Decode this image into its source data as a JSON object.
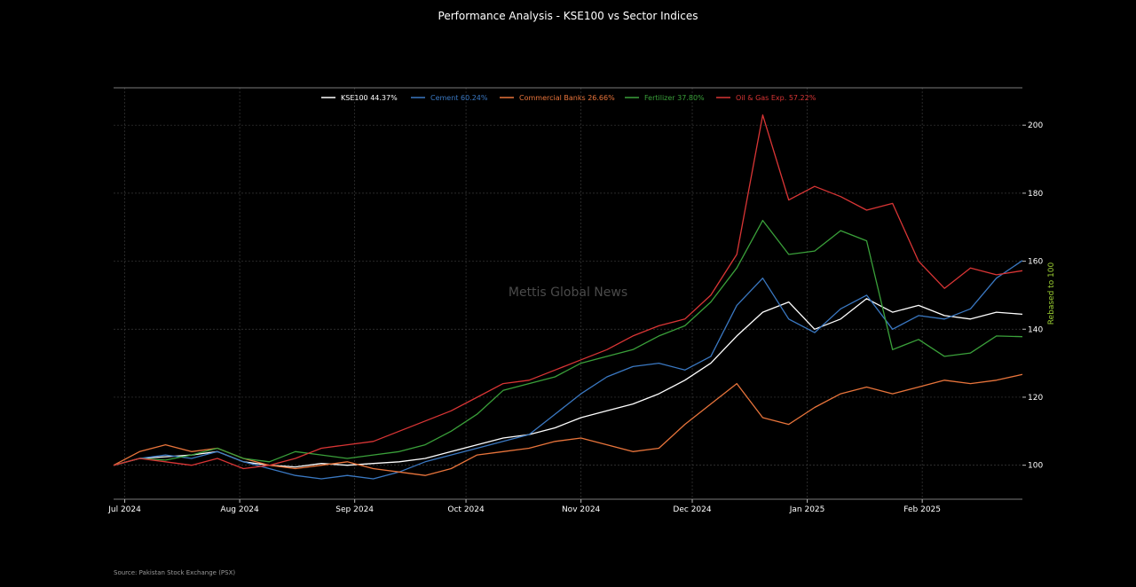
{
  "chart_data": {
    "type": "line",
    "title": "Performance Analysis - KSE100 vs Sector Indices",
    "ylabel": "Rebased to 100",
    "xlabel": "",
    "watermark": "Mettis Global News",
    "source": "Source: Pakistan Stock Exchange (PSX)",
    "x_range": [
      "2024-06-28",
      "2025-02-28"
    ],
    "ylim": [
      90,
      211
    ],
    "y_ticks": [
      100,
      120,
      140,
      160,
      180,
      200
    ],
    "y_axis_position": "right",
    "x_ticks": [
      {
        "date": "2024-07-01",
        "label": "Jul 2024"
      },
      {
        "date": "2024-08-01",
        "label": "Aug 2024"
      },
      {
        "date": "2024-09-01",
        "label": "Sep 2024"
      },
      {
        "date": "2024-10-01",
        "label": "Oct 2024"
      },
      {
        "date": "2024-11-01",
        "label": "Nov 2024"
      },
      {
        "date": "2024-12-01",
        "label": "Dec 2024"
      },
      {
        "date": "2025-01-01",
        "label": "Jan 2025"
      },
      {
        "date": "2025-02-01",
        "label": "Feb 2025"
      }
    ],
    "grid": true,
    "legend_placement": "top-center",
    "colors": {
      "background": "#000000",
      "ylabel": "#9acd32"
    },
    "series": [
      {
        "name": "KSE100 44.37%",
        "color": "#ffffff",
        "points": [
          [
            "2024-06-28",
            100
          ],
          [
            "2024-07-05",
            102
          ],
          [
            "2024-07-12",
            102.5
          ],
          [
            "2024-07-19",
            103
          ],
          [
            "2024-07-26",
            104
          ],
          [
            "2024-08-02",
            101
          ],
          [
            "2024-08-09",
            100
          ],
          [
            "2024-08-16",
            99.5
          ],
          [
            "2024-08-23",
            100.5
          ],
          [
            "2024-08-30",
            100
          ],
          [
            "2024-09-06",
            100.5
          ],
          [
            "2024-09-13",
            101
          ],
          [
            "2024-09-20",
            102
          ],
          [
            "2024-09-27",
            104
          ],
          [
            "2024-10-04",
            106
          ],
          [
            "2024-10-11",
            108
          ],
          [
            "2024-10-18",
            109
          ],
          [
            "2024-10-25",
            111
          ],
          [
            "2024-11-01",
            114
          ],
          [
            "2024-11-08",
            116
          ],
          [
            "2024-11-15",
            118
          ],
          [
            "2024-11-22",
            121
          ],
          [
            "2024-11-29",
            125
          ],
          [
            "2024-12-06",
            130
          ],
          [
            "2024-12-13",
            138
          ],
          [
            "2024-12-20",
            145
          ],
          [
            "2024-12-27",
            148
          ],
          [
            "2025-01-03",
            140
          ],
          [
            "2025-01-10",
            143
          ],
          [
            "2025-01-17",
            149
          ],
          [
            "2025-01-24",
            145
          ],
          [
            "2025-01-31",
            147
          ],
          [
            "2025-02-07",
            144
          ],
          [
            "2025-02-14",
            143
          ],
          [
            "2025-02-21",
            145
          ],
          [
            "2025-02-28",
            144.4
          ]
        ]
      },
      {
        "name": "Cement 60.24%",
        "color": "#3a78c2",
        "points": [
          [
            "2024-06-28",
            100
          ],
          [
            "2024-07-05",
            102
          ],
          [
            "2024-07-12",
            103
          ],
          [
            "2024-07-19",
            102
          ],
          [
            "2024-07-26",
            104
          ],
          [
            "2024-08-02",
            101
          ],
          [
            "2024-08-09",
            99
          ],
          [
            "2024-08-16",
            97
          ],
          [
            "2024-08-23",
            96
          ],
          [
            "2024-08-30",
            97
          ],
          [
            "2024-09-06",
            96
          ],
          [
            "2024-09-13",
            98
          ],
          [
            "2024-09-20",
            101
          ],
          [
            "2024-09-27",
            103
          ],
          [
            "2024-10-04",
            105
          ],
          [
            "2024-10-11",
            107
          ],
          [
            "2024-10-18",
            109
          ],
          [
            "2024-10-25",
            115
          ],
          [
            "2024-11-01",
            121
          ],
          [
            "2024-11-08",
            126
          ],
          [
            "2024-11-15",
            129
          ],
          [
            "2024-11-22",
            130
          ],
          [
            "2024-11-29",
            128
          ],
          [
            "2024-12-06",
            132
          ],
          [
            "2024-12-13",
            147
          ],
          [
            "2024-12-20",
            155
          ],
          [
            "2024-12-27",
            143
          ],
          [
            "2025-01-03",
            139
          ],
          [
            "2025-01-10",
            146
          ],
          [
            "2025-01-17",
            150
          ],
          [
            "2025-01-24",
            140
          ],
          [
            "2025-01-31",
            144
          ],
          [
            "2025-02-07",
            143
          ],
          [
            "2025-02-14",
            146
          ],
          [
            "2025-02-21",
            155
          ],
          [
            "2025-02-28",
            160.2
          ]
        ]
      },
      {
        "name": "Commercial Banks 26.66%",
        "color": "#e8743b",
        "points": [
          [
            "2024-06-28",
            100
          ],
          [
            "2024-07-05",
            104
          ],
          [
            "2024-07-12",
            106
          ],
          [
            "2024-07-19",
            104
          ],
          [
            "2024-07-26",
            105
          ],
          [
            "2024-08-02",
            102
          ],
          [
            "2024-08-09",
            100
          ],
          [
            "2024-08-16",
            99
          ],
          [
            "2024-08-23",
            100
          ],
          [
            "2024-08-30",
            101
          ],
          [
            "2024-09-06",
            99
          ],
          [
            "2024-09-13",
            98
          ],
          [
            "2024-09-20",
            97
          ],
          [
            "2024-09-27",
            99
          ],
          [
            "2024-10-04",
            103
          ],
          [
            "2024-10-11",
            104
          ],
          [
            "2024-10-18",
            105
          ],
          [
            "2024-10-25",
            107
          ],
          [
            "2024-11-01",
            108
          ],
          [
            "2024-11-08",
            106
          ],
          [
            "2024-11-15",
            104
          ],
          [
            "2024-11-22",
            105
          ],
          [
            "2024-11-29",
            112
          ],
          [
            "2024-12-06",
            118
          ],
          [
            "2024-12-13",
            124
          ],
          [
            "2024-12-20",
            114
          ],
          [
            "2024-12-27",
            112
          ],
          [
            "2025-01-03",
            117
          ],
          [
            "2025-01-10",
            121
          ],
          [
            "2025-01-17",
            123
          ],
          [
            "2025-01-24",
            121
          ],
          [
            "2025-01-31",
            123
          ],
          [
            "2025-02-07",
            125
          ],
          [
            "2025-02-14",
            124
          ],
          [
            "2025-02-21",
            125
          ],
          [
            "2025-02-28",
            126.7
          ]
        ]
      },
      {
        "name": "Fertilizer 37.80%",
        "color": "#3aa03a",
        "points": [
          [
            "2024-06-28",
            100
          ],
          [
            "2024-07-05",
            102
          ],
          [
            "2024-07-12",
            101.5
          ],
          [
            "2024-07-19",
            103
          ],
          [
            "2024-07-26",
            105
          ],
          [
            "2024-08-02",
            102
          ],
          [
            "2024-08-09",
            101
          ],
          [
            "2024-08-16",
            104
          ],
          [
            "2024-08-23",
            103
          ],
          [
            "2024-08-30",
            102
          ],
          [
            "2024-09-06",
            103
          ],
          [
            "2024-09-13",
            104
          ],
          [
            "2024-09-20",
            106
          ],
          [
            "2024-09-27",
            110
          ],
          [
            "2024-10-04",
            115
          ],
          [
            "2024-10-11",
            122
          ],
          [
            "2024-10-18",
            124
          ],
          [
            "2024-10-25",
            126
          ],
          [
            "2024-11-01",
            130
          ],
          [
            "2024-11-08",
            132
          ],
          [
            "2024-11-15",
            134
          ],
          [
            "2024-11-22",
            138
          ],
          [
            "2024-11-29",
            141
          ],
          [
            "2024-12-06",
            148
          ],
          [
            "2024-12-13",
            158
          ],
          [
            "2024-12-20",
            172
          ],
          [
            "2024-12-27",
            162
          ],
          [
            "2025-01-03",
            163
          ],
          [
            "2025-01-10",
            169
          ],
          [
            "2025-01-17",
            166
          ],
          [
            "2025-01-24",
            134
          ],
          [
            "2025-01-31",
            137
          ],
          [
            "2025-02-07",
            132
          ],
          [
            "2025-02-14",
            133
          ],
          [
            "2025-02-21",
            138
          ],
          [
            "2025-02-28",
            137.8
          ]
        ]
      },
      {
        "name": "Oil & Gas Exp. 57.22%",
        "color": "#d93535",
        "points": [
          [
            "2024-06-28",
            100
          ],
          [
            "2024-07-05",
            102
          ],
          [
            "2024-07-12",
            101
          ],
          [
            "2024-07-19",
            100
          ],
          [
            "2024-07-26",
            102
          ],
          [
            "2024-08-02",
            99
          ],
          [
            "2024-08-09",
            100
          ],
          [
            "2024-08-16",
            102
          ],
          [
            "2024-08-23",
            105
          ],
          [
            "2024-08-30",
            106
          ],
          [
            "2024-09-06",
            107
          ],
          [
            "2024-09-13",
            110
          ],
          [
            "2024-09-20",
            113
          ],
          [
            "2024-09-27",
            116
          ],
          [
            "2024-10-04",
            120
          ],
          [
            "2024-10-11",
            124
          ],
          [
            "2024-10-18",
            125
          ],
          [
            "2024-10-25",
            128
          ],
          [
            "2024-11-01",
            131
          ],
          [
            "2024-11-08",
            134
          ],
          [
            "2024-11-15",
            138
          ],
          [
            "2024-11-22",
            141
          ],
          [
            "2024-11-29",
            143
          ],
          [
            "2024-12-06",
            150
          ],
          [
            "2024-12-13",
            162
          ],
          [
            "2024-12-20",
            203
          ],
          [
            "2024-12-27",
            178
          ],
          [
            "2025-01-03",
            182
          ],
          [
            "2025-01-10",
            179
          ],
          [
            "2025-01-17",
            175
          ],
          [
            "2025-01-24",
            177
          ],
          [
            "2025-01-31",
            160
          ],
          [
            "2025-02-07",
            152
          ],
          [
            "2025-02-14",
            158
          ],
          [
            "2025-02-21",
            156
          ],
          [
            "2025-02-28",
            157.2
          ]
        ]
      }
    ]
  }
}
